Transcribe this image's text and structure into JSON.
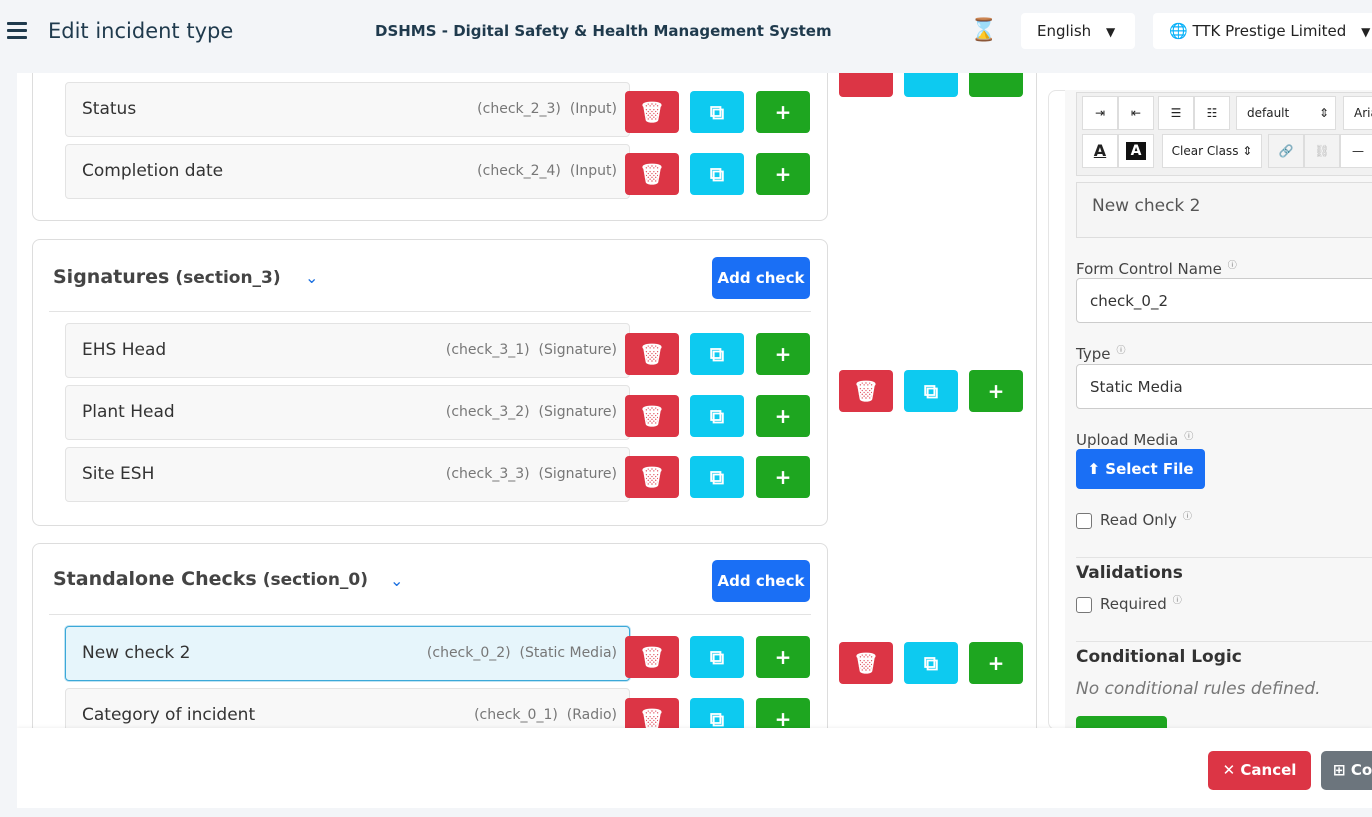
{
  "header": {
    "page_title": "Edit incident type",
    "app_title": "DSHMS - Digital Safety & Health Management System",
    "language": "English",
    "company": "TTK Prestige Limited"
  },
  "sections": [
    {
      "rows": [
        {
          "label": "Status",
          "id": "(check_2_3)",
          "type": "(Input)"
        },
        {
          "label": "Completion date",
          "id": "(check_2_4)",
          "type": "(Input)"
        }
      ]
    },
    {
      "title": "Signatures",
      "id": "(section_3)",
      "add_label": "Add check",
      "rows": [
        {
          "label": "EHS Head",
          "id": "(check_3_1)",
          "type": "(Signature)"
        },
        {
          "label": "Plant Head",
          "id": "(check_3_2)",
          "type": "(Signature)"
        },
        {
          "label": "Site ESH",
          "id": "(check_3_3)",
          "type": "(Signature)"
        }
      ]
    },
    {
      "title": "Standalone Checks",
      "id": "(section_0)",
      "add_label": "Add check",
      "rows": [
        {
          "label": "New check 2",
          "id": "(check_0_2)",
          "type": "(Static Media)",
          "selected": true
        },
        {
          "label": "Category of incident",
          "id": "(check_0_1)",
          "type": "(Radio)"
        }
      ]
    }
  ],
  "editor": {
    "font_size": "default",
    "font_family": "Aria",
    "class_select": "Clear Class",
    "content": "New check 2"
  },
  "properties": {
    "form_control_label": "Form Control Name",
    "form_control_value": "check_0_2",
    "type_label": "Type",
    "type_value": "Static Media",
    "upload_label": "Upload Media",
    "select_file": "Select File",
    "read_only": "Read Only",
    "validations_title": "Validations",
    "required": "Required",
    "conditional_title": "Conditional Logic",
    "conditional_empty": "No conditional rules defined."
  },
  "footer": {
    "cancel": "Cancel",
    "next": "Co"
  },
  "colors": {
    "danger": "#dc3545",
    "info": "#0dcaf0",
    "success": "#1ea620",
    "primary": "#1a6ff5",
    "header_text": "#1f3a4d"
  }
}
